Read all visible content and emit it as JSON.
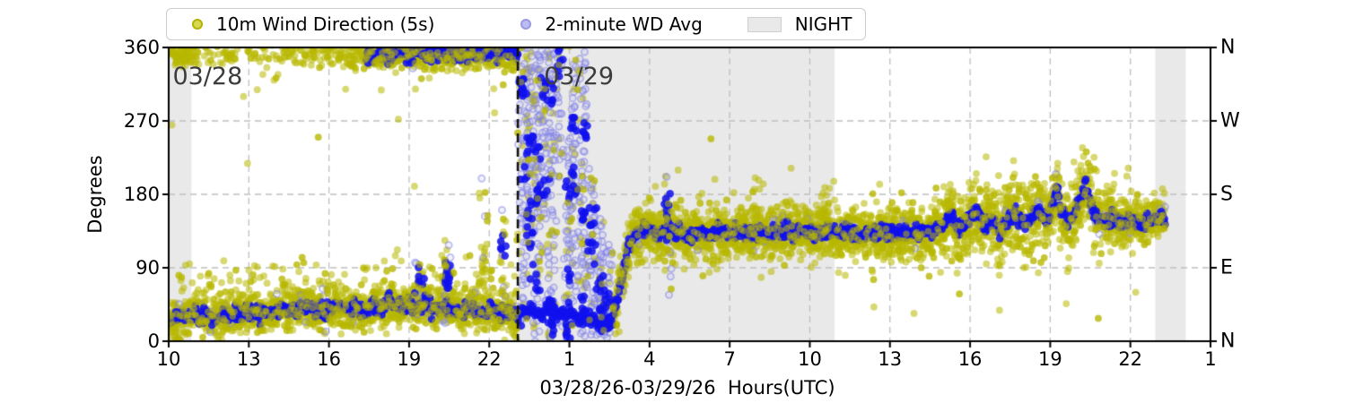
{
  "legend": {
    "items": [
      {
        "name": "wd-5s",
        "label": "10m Wind Direction (5s)",
        "marker": "dot",
        "fill": "#d8d84e",
        "edge": "#b2b200"
      },
      {
        "name": "wd-avg",
        "label": "2-minute WD Avg",
        "marker": "dot",
        "fill": "#bcbcf4",
        "edge": "#9a9ae2"
      },
      {
        "name": "night",
        "label": "NIGHT",
        "marker": "patch",
        "fill": "#e9e9e9",
        "edge": "#cfcfcf"
      }
    ]
  },
  "chart_data": {
    "type": "scatter",
    "title": "",
    "xlabel": "03/28/26-03/29/26  Hours(UTC)",
    "ylabel": "Degrees",
    "x_axis": {
      "start": "03/28 10:00 UTC",
      "span_hours": 39,
      "tick_step_hours": 3,
      "tick_labels": [
        "10",
        "13",
        "16",
        "19",
        "22",
        "1",
        "4",
        "7",
        "10",
        "13",
        "16",
        "19",
        "22",
        "1"
      ]
    },
    "y_axis": {
      "min": 0,
      "max": 360,
      "ticks": [
        0,
        90,
        180,
        270,
        360
      ],
      "compass_labels": [
        "N",
        "E",
        "S",
        "W",
        "N"
      ]
    },
    "grid": {
      "show": true,
      "x_lines_hours": [
        3,
        6,
        9,
        12,
        15,
        18,
        21,
        24,
        27,
        30,
        33,
        36
      ],
      "y_lines_deg": [
        90,
        180,
        270
      ]
    },
    "night_bands_hours": [
      [
        0,
        0.85
      ],
      [
        13.07,
        24.93
      ],
      [
        36.93,
        38.07
      ]
    ],
    "date_line_hour": 13.07,
    "date_annotations": [
      {
        "label": "03/28",
        "hour": 0.15
      },
      {
        "label": "03/29",
        "hour": 14.05
      }
    ],
    "data_end_hour": 37.3,
    "style": {
      "night_fill": "#e9e9e9",
      "grid_color": "#bfbfbf",
      "frame_color": "#000000",
      "date_line_color": "#111111",
      "yellow_fill": "rgba(184,184,0,0.55)",
      "blue_fill": "rgba(16,16,238,0.85)",
      "ring_stroke": "rgba(128,128,232,0.5)",
      "ring_fill": "rgba(170,170,240,0.15)"
    },
    "series": [
      {
        "name": "10m Wind Direction (5s)",
        "kind": "scatter_5s_band",
        "sigma_deg": {
          "pre_transition": 11,
          "steady": 15,
          "evening_variable": 21,
          "late": 13
        },
        "top_band": {
          "center_deg": 352,
          "sigma_deg": 9,
          "density_segments": [
            [
              0,
              1,
              0.5
            ],
            [
              1,
              6,
              0.22
            ],
            [
              6,
              7.4,
              0.4
            ],
            [
              7.4,
              13.07,
              0.85
            ]
          ]
        },
        "outliers": [
          [
            0.12,
            265
          ],
          [
            2.8,
            300
          ],
          [
            2.95,
            218
          ],
          [
            5.6,
            250
          ],
          [
            8.6,
            272
          ],
          [
            9.2,
            190
          ],
          [
            12.2,
            280
          ],
          [
            20.3,
            248
          ],
          [
            23.3,
            212
          ],
          [
            26.4,
            42
          ],
          [
            27.9,
            34
          ],
          [
            29.6,
            58
          ],
          [
            30.6,
            226
          ],
          [
            31.1,
            38
          ],
          [
            33.6,
            46
          ],
          [
            34.8,
            28
          ],
          [
            24.9,
            196
          ],
          [
            36.2,
            60
          ]
        ]
      },
      {
        "name": "2-minute WD Avg",
        "kind": "avg_scatter",
        "low_waypoints": [
          [
            0,
            26
          ],
          [
            0.5,
            30
          ],
          [
            1,
            34
          ],
          [
            1.5,
            30
          ],
          [
            2,
            29
          ],
          [
            2.5,
            35
          ],
          [
            3,
            38
          ],
          [
            3.5,
            33
          ],
          [
            4,
            36
          ],
          [
            4.5,
            40
          ],
          [
            5,
            42
          ],
          [
            5.5,
            38
          ],
          [
            6,
            36
          ],
          [
            6.3,
            44
          ],
          [
            6.6,
            38
          ],
          [
            7,
            41
          ],
          [
            7.3,
            36
          ],
          [
            7.6,
            44
          ],
          [
            8,
            40
          ],
          [
            8.3,
            50
          ],
          [
            8.6,
            42
          ],
          [
            9,
            47
          ],
          [
            9.3,
            38
          ],
          [
            9.6,
            45
          ],
          [
            10,
            36
          ],
          [
            10.3,
            44
          ],
          [
            10.6,
            40
          ],
          [
            11,
            34
          ],
          [
            11.3,
            41
          ],
          [
            11.6,
            36
          ],
          [
            12,
            40
          ],
          [
            12.3,
            34
          ],
          [
            12.6,
            37
          ],
          [
            13,
            30
          ],
          [
            13.3,
            34
          ],
          [
            13.6,
            38
          ],
          [
            14,
            33
          ],
          [
            14.3,
            38
          ],
          [
            14.6,
            30
          ],
          [
            15,
            35
          ],
          [
            15.3,
            28
          ],
          [
            15.6,
            33
          ],
          [
            16,
            24
          ],
          [
            16.3,
            18
          ],
          [
            16.55,
            22
          ]
        ],
        "top_waypoints": [
          [
            7.4,
            348
          ],
          [
            7.8,
            354
          ],
          [
            8.2,
            349
          ],
          [
            8.6,
            356
          ],
          [
            9,
            351
          ],
          [
            9.4,
            357
          ],
          [
            9.8,
            352
          ],
          [
            10.2,
            356
          ],
          [
            10.6,
            350
          ],
          [
            11,
            355
          ],
          [
            11.4,
            351
          ],
          [
            11.8,
            356
          ],
          [
            12.2,
            352
          ],
          [
            12.6,
            356
          ],
          [
            13.07,
            353
          ]
        ],
        "main_waypoints": [
          [
            16.55,
            22
          ],
          [
            16.8,
            50
          ],
          [
            17,
            85
          ],
          [
            17.2,
            115
          ],
          [
            17.4,
            128
          ],
          [
            17.6,
            134
          ],
          [
            18,
            138
          ],
          [
            18.4,
            130
          ],
          [
            18.7,
            136
          ],
          [
            19,
            133
          ],
          [
            19.4,
            128
          ],
          [
            19.8,
            134
          ],
          [
            20.2,
            130
          ],
          [
            20.6,
            136
          ],
          [
            21,
            132
          ],
          [
            21.4,
            135
          ],
          [
            21.8,
            130
          ],
          [
            22.2,
            134
          ],
          [
            22.6,
            131
          ],
          [
            23,
            136
          ],
          [
            23.4,
            132
          ],
          [
            23.8,
            135
          ],
          [
            24.2,
            131
          ],
          [
            24.6,
            134
          ],
          [
            25,
            132
          ],
          [
            25.4,
            136
          ],
          [
            25.8,
            131
          ],
          [
            26.2,
            134
          ],
          [
            26.6,
            132
          ],
          [
            27,
            135
          ],
          [
            27.4,
            131
          ],
          [
            27.8,
            134
          ],
          [
            28.2,
            132
          ],
          [
            28.6,
            136
          ],
          [
            29,
            142
          ],
          [
            29.3,
            154
          ],
          [
            29.6,
            136
          ],
          [
            29.9,
            148
          ],
          [
            30.2,
            162
          ],
          [
            30.5,
            140
          ],
          [
            30.8,
            152
          ],
          [
            31.1,
            132
          ],
          [
            31.4,
            148
          ],
          [
            31.7,
            158
          ],
          [
            32,
            142
          ],
          [
            32.3,
            152
          ],
          [
            32.6,
            163
          ],
          [
            32.9,
            146
          ],
          [
            33.1,
            170
          ],
          [
            33.25,
            188
          ],
          [
            33.4,
            158
          ],
          [
            33.7,
            142
          ],
          [
            33.9,
            158
          ],
          [
            34.1,
            168
          ],
          [
            34.3,
            196
          ],
          [
            34.5,
            170
          ],
          [
            34.7,
            152
          ],
          [
            35,
            146
          ],
          [
            35.3,
            152
          ],
          [
            35.6,
            144
          ],
          [
            36,
            149
          ],
          [
            36.4,
            143
          ],
          [
            36.8,
            148
          ],
          [
            37.1,
            151
          ],
          [
            37.3,
            150
          ]
        ]
      }
    ],
    "transition_columns": [
      {
        "t": 13.25,
        "lo": 20,
        "hi": 362,
        "rings": 50,
        "blue": 18,
        "yellow": 20
      },
      {
        "t": 13.5,
        "lo": 120,
        "hi": 362,
        "rings": 45,
        "blue": 20,
        "yellow": 25
      },
      {
        "t": 13.78,
        "lo": 5,
        "hi": 362,
        "rings": 60,
        "blue": 22,
        "yellow": 18
      },
      {
        "t": 14.05,
        "lo": 150,
        "hi": 362,
        "rings": 40,
        "blue": 16,
        "yellow": 14
      },
      {
        "t": 14.32,
        "lo": 5,
        "hi": 362,
        "rings": 55,
        "blue": 20,
        "yellow": 20
      },
      {
        "t": 14.6,
        "lo": 200,
        "hi": 362,
        "rings": 30,
        "blue": 10,
        "yellow": 10
      },
      {
        "t": 14.95,
        "lo": 5,
        "hi": 250,
        "rings": 45,
        "blue": 18,
        "yellow": 15
      },
      {
        "t": 15.2,
        "lo": 60,
        "hi": 362,
        "rings": 40,
        "blue": 15,
        "yellow": 12
      },
      {
        "t": 15.52,
        "lo": 5,
        "hi": 362,
        "rings": 55,
        "blue": 22,
        "yellow": 18
      },
      {
        "t": 15.85,
        "lo": 5,
        "hi": 200,
        "rings": 35,
        "blue": 14,
        "yellow": 12
      },
      {
        "t": 16.15,
        "lo": 5,
        "hi": 150,
        "rings": 30,
        "blue": 12,
        "yellow": 10
      },
      {
        "t": 16.4,
        "lo": 5,
        "hi": 120,
        "rings": 25,
        "blue": 10,
        "yellow": 8
      },
      {
        "t": 9.35,
        "lo": 25,
        "hi": 100,
        "rings": 8,
        "blue": 10,
        "yellow": 14
      },
      {
        "t": 10.42,
        "lo": 25,
        "hi": 125,
        "rings": 8,
        "blue": 12,
        "yellow": 16
      },
      {
        "t": 11.8,
        "lo": 50,
        "hi": 200,
        "rings": 4,
        "blue": 0,
        "yellow": 18
      },
      {
        "t": 12.5,
        "lo": 35,
        "hi": 150,
        "rings": 4,
        "blue": 6,
        "yellow": 14
      },
      {
        "t": 18.7,
        "lo": 60,
        "hi": 190,
        "rings": 10,
        "blue": 12,
        "yellow": 10
      },
      {
        "t": 21.9,
        "lo": 120,
        "hi": 205,
        "rings": 0,
        "blue": 0,
        "yellow": 16
      },
      {
        "t": 24.6,
        "lo": 115,
        "hi": 195,
        "rings": 0,
        "blue": 0,
        "yellow": 14
      }
    ]
  }
}
